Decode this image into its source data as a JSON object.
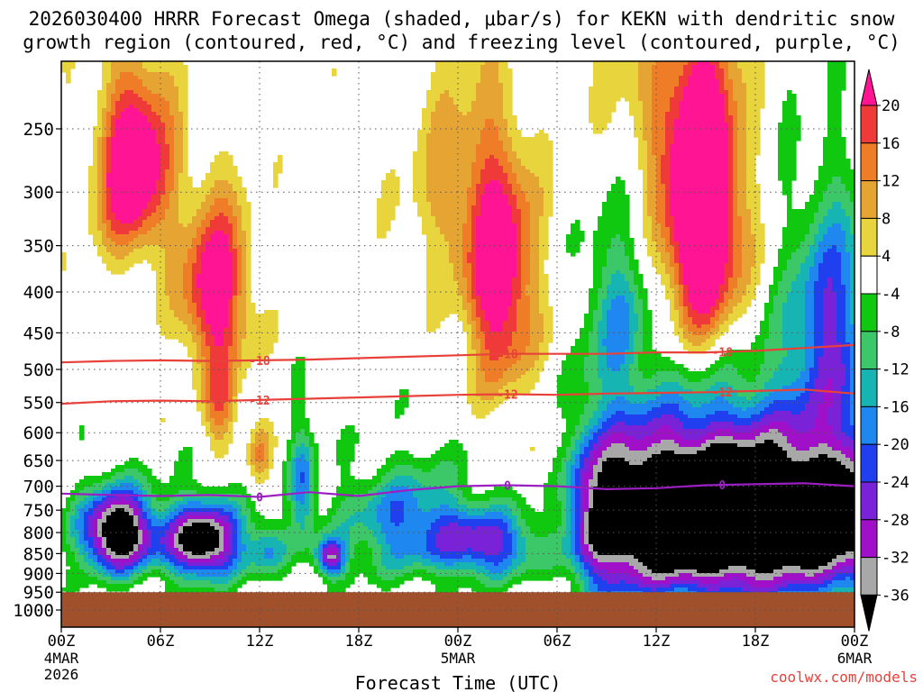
{
  "title": {
    "line1": "2026030400 HRRR Forecast Omega (shaded, μbar/s) for KEKN with dendritic snow",
    "line2": "growth region (contoured, red, °C) and freezing level (contoured, purple, °C)"
  },
  "footer": {
    "credit": "coolwx.com/models"
  },
  "colors": {
    "dgz_contour": "#e8413a",
    "freezing_contour": "#9b1fc2",
    "ground": "#a0502a",
    "grid": "#555555"
  },
  "chart_data": {
    "type": "heatmap",
    "title": "2026030400 HRRR Forecast Omega (shaded, μbar/s) for KEKN with dendritic snow growth region (contoured, red, °C) and freezing level (contoured, purple, °C)",
    "xlabel": "Forecast Time (UTC)",
    "ylabel": "",
    "x_ticks": [
      {
        "hour": 0,
        "label": "00Z",
        "sub1": "4MAR",
        "sub2": "2026"
      },
      {
        "hour": 6,
        "label": "06Z",
        "sub1": "",
        "sub2": ""
      },
      {
        "hour": 12,
        "label": "12Z",
        "sub1": "",
        "sub2": ""
      },
      {
        "hour": 18,
        "label": "18Z",
        "sub1": "",
        "sub2": ""
      },
      {
        "hour": 24,
        "label": "00Z",
        "sub1": "5MAR",
        "sub2": ""
      },
      {
        "hour": 30,
        "label": "06Z",
        "sub1": "",
        "sub2": ""
      },
      {
        "hour": 36,
        "label": "12Z",
        "sub1": "",
        "sub2": ""
      },
      {
        "hour": 42,
        "label": "18Z",
        "sub1": "",
        "sub2": ""
      },
      {
        "hour": 48,
        "label": "00Z",
        "sub1": "6MAR",
        "sub2": ""
      }
    ],
    "y_ticks": [
      250,
      300,
      350,
      400,
      450,
      500,
      550,
      600,
      650,
      700,
      750,
      800,
      850,
      900,
      950,
      1000
    ],
    "y_scale": "log-pressure",
    "xlim": [
      0,
      48
    ],
    "ylim_hPa": [
      1000,
      200
    ],
    "grid": true,
    "colorbar": {
      "labels": [
        "20",
        "16",
        "12",
        "8",
        "4",
        "-4",
        "-8",
        "-12",
        "-16",
        "-20",
        "-24",
        "-28",
        "-32",
        "-36"
      ],
      "levels": [
        {
          "from": 20,
          "to": 24,
          "color": "#ff1493"
        },
        {
          "from": 16,
          "to": 20,
          "color": "#f03a3a"
        },
        {
          "from": 12,
          "to": 16,
          "color": "#ef7d27"
        },
        {
          "from": 8,
          "to": 12,
          "color": "#e6a533"
        },
        {
          "from": 4,
          "to": 8,
          "color": "#e8d43c"
        },
        {
          "from": -4,
          "to": 4,
          "color": "#ffffff"
        },
        {
          "from": -8,
          "to": -4,
          "color": "#10c810"
        },
        {
          "from": -12,
          "to": -8,
          "color": "#3cc868"
        },
        {
          "from": -16,
          "to": -12,
          "color": "#17b4b4"
        },
        {
          "from": -20,
          "to": -16,
          "color": "#1e88f0"
        },
        {
          "from": -24,
          "to": -20,
          "color": "#2040f0"
        },
        {
          "from": -28,
          "to": -24,
          "color": "#7a22d8"
        },
        {
          "from": -32,
          "to": -28,
          "color": "#a010c8"
        },
        {
          "from": -36,
          "to": -32,
          "color": "#a8a8a8"
        },
        {
          "from": -40,
          "to": -36,
          "color": "#000000"
        }
      ]
    },
    "contour_labels": {
      "dgz_upper": "-18",
      "dgz_lower": "-12",
      "freezing": "0"
    },
    "series": [
      {
        "name": "-18",
        "hours": [
          0,
          3,
          6,
          9,
          12,
          15,
          18,
          21,
          24,
          27,
          30,
          33,
          36,
          39,
          42,
          45,
          48
        ],
        "pressure": [
          490,
          488,
          487,
          488,
          487,
          486,
          484,
          482,
          480,
          478,
          478,
          478,
          476,
          476,
          474,
          470,
          466
        ]
      },
      {
        "name": "-12",
        "hours": [
          0,
          3,
          6,
          9,
          12,
          15,
          18,
          21,
          24,
          27,
          30,
          33,
          36,
          39,
          42,
          45,
          48
        ],
        "pressure": [
          552,
          548,
          547,
          548,
          546,
          544,
          542,
          540,
          538,
          537,
          538,
          536,
          535,
          534,
          532,
          530,
          536
        ]
      },
      {
        "name": "0",
        "hours": [
          0,
          3,
          6,
          9,
          12,
          15,
          18,
          21,
          24,
          27,
          30,
          33,
          36,
          39,
          42,
          45,
          48
        ],
        "pressure": [
          715,
          718,
          720,
          718,
          722,
          712,
          720,
          708,
          700,
          698,
          700,
          706,
          704,
          698,
          696,
          694,
          700
        ]
      }
    ],
    "ground_level_hPa": 950
  }
}
